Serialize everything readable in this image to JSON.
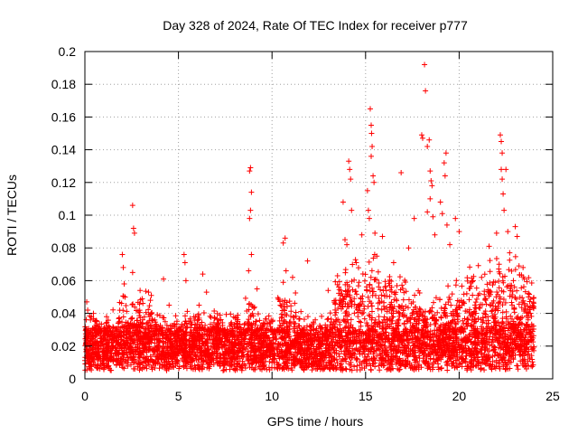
{
  "chart_data": {
    "type": "scatter",
    "title": "Day 328 of 2024, Rate Of TEC Index for receiver p777",
    "xlabel": "GPS time / hours",
    "ylabel": "ROTI / TECUs",
    "xlim": [
      0,
      25
    ],
    "ylim": [
      0,
      0.2
    ],
    "grid": true,
    "marker": "+",
    "colors": {
      "points": "#ff0000",
      "axes": "#000000",
      "grid": "#a0a0a0"
    },
    "x_ticks": [
      {
        "value": 0,
        "label": "0"
      },
      {
        "value": 5,
        "label": "5"
      },
      {
        "value": 10,
        "label": "10"
      },
      {
        "value": 15,
        "label": "15"
      },
      {
        "value": 20,
        "label": "20"
      },
      {
        "value": 25,
        "label": "25"
      }
    ],
    "y_ticks": [
      {
        "value": 0,
        "label": "0"
      },
      {
        "value": 0.02,
        "label": "0.02"
      },
      {
        "value": 0.04,
        "label": "0.04"
      },
      {
        "value": 0.06,
        "label": "0.06"
      },
      {
        "value": 0.08,
        "label": "0.08"
      },
      {
        "value": 0.1,
        "label": "0.1"
      },
      {
        "value": 0.12,
        "label": "0.12"
      },
      {
        "value": 0.14,
        "label": "0.14"
      },
      {
        "value": 0.16,
        "label": "0.16"
      },
      {
        "value": 0.18,
        "label": "0.18"
      },
      {
        "value": 0.2,
        "label": "0.2"
      }
    ],
    "series": [
      {
        "name": "ROTI",
        "x_range": [
          0,
          24
        ],
        "baseline_band": [
          0.005,
          0.04
        ],
        "points": [
          [
            0.1,
            0.047
          ],
          [
            0.15,
            0.042
          ],
          [
            0.3,
            0.036
          ],
          [
            2.0,
            0.076
          ],
          [
            2.05,
            0.068
          ],
          [
            2.1,
            0.058
          ],
          [
            2.15,
            0.05
          ],
          [
            2.55,
            0.106
          ],
          [
            2.6,
            0.092
          ],
          [
            2.65,
            0.089
          ],
          [
            2.55,
            0.065
          ],
          [
            2.95,
            0.054
          ],
          [
            3.4,
            0.053
          ],
          [
            3.5,
            0.048
          ],
          [
            4.2,
            0.061
          ],
          [
            4.5,
            0.045
          ],
          [
            5.3,
            0.076
          ],
          [
            5.35,
            0.071
          ],
          [
            5.4,
            0.06
          ],
          [
            6.1,
            0.045
          ],
          [
            6.3,
            0.064
          ],
          [
            6.5,
            0.053
          ],
          [
            8.8,
            0.127
          ],
          [
            8.85,
            0.129
          ],
          [
            8.9,
            0.114
          ],
          [
            8.85,
            0.103
          ],
          [
            8.8,
            0.098
          ],
          [
            8.9,
            0.076
          ],
          [
            8.75,
            0.066
          ],
          [
            9.2,
            0.055
          ],
          [
            10.6,
            0.083
          ],
          [
            10.7,
            0.086
          ],
          [
            10.75,
            0.066
          ],
          [
            10.6,
            0.059
          ],
          [
            11.1,
            0.062
          ],
          [
            11.9,
            0.072
          ],
          [
            13.0,
            0.054
          ],
          [
            13.5,
            0.063
          ],
          [
            13.8,
            0.108
          ],
          [
            13.9,
            0.085
          ],
          [
            14.0,
            0.082
          ],
          [
            14.1,
            0.133
          ],
          [
            14.15,
            0.128
          ],
          [
            14.2,
            0.122
          ],
          [
            14.25,
            0.103
          ],
          [
            14.5,
            0.071
          ],
          [
            14.8,
            0.088
          ],
          [
            15.1,
            0.115
          ],
          [
            15.15,
            0.103
          ],
          [
            15.2,
            0.098
          ],
          [
            15.25,
            0.165
          ],
          [
            15.3,
            0.155
          ],
          [
            15.32,
            0.15
          ],
          [
            15.35,
            0.142
          ],
          [
            15.3,
            0.136
          ],
          [
            15.4,
            0.124
          ],
          [
            15.45,
            0.12
          ],
          [
            15.5,
            0.089
          ],
          [
            15.6,
            0.075
          ],
          [
            15.9,
            0.087
          ],
          [
            16.5,
            0.071
          ],
          [
            16.9,
            0.126
          ],
          [
            17.3,
            0.08
          ],
          [
            17.6,
            0.098
          ],
          [
            18.0,
            0.149
          ],
          [
            18.05,
            0.147
          ],
          [
            18.15,
            0.192
          ],
          [
            18.2,
            0.176
          ],
          [
            18.3,
            0.142
          ],
          [
            18.4,
            0.146
          ],
          [
            18.45,
            0.127
          ],
          [
            18.5,
            0.121
          ],
          [
            18.55,
            0.118
          ],
          [
            18.45,
            0.11
          ],
          [
            18.3,
            0.102
          ],
          [
            18.6,
            0.099
          ],
          [
            18.7,
            0.088
          ],
          [
            19.0,
            0.108
          ],
          [
            19.1,
            0.101
          ],
          [
            19.2,
            0.132
          ],
          [
            19.3,
            0.138
          ],
          [
            19.25,
            0.124
          ],
          [
            19.35,
            0.094
          ],
          [
            19.5,
            0.082
          ],
          [
            19.8,
            0.098
          ],
          [
            20.0,
            0.09
          ],
          [
            21.2,
            0.062
          ],
          [
            21.6,
            0.081
          ],
          [
            22.0,
            0.089
          ],
          [
            22.2,
            0.149
          ],
          [
            22.25,
            0.145
          ],
          [
            22.3,
            0.138
          ],
          [
            22.25,
            0.128
          ],
          [
            22.3,
            0.122
          ],
          [
            22.35,
            0.113
          ],
          [
            22.4,
            0.103
          ],
          [
            22.5,
            0.128
          ],
          [
            22.6,
            0.09
          ],
          [
            22.7,
            0.077
          ],
          [
            23.0,
            0.093
          ],
          [
            23.1,
            0.087
          ],
          [
            23.2,
            0.069
          ],
          [
            23.5,
            0.046
          ],
          [
            23.8,
            0.044
          ]
        ]
      }
    ]
  }
}
